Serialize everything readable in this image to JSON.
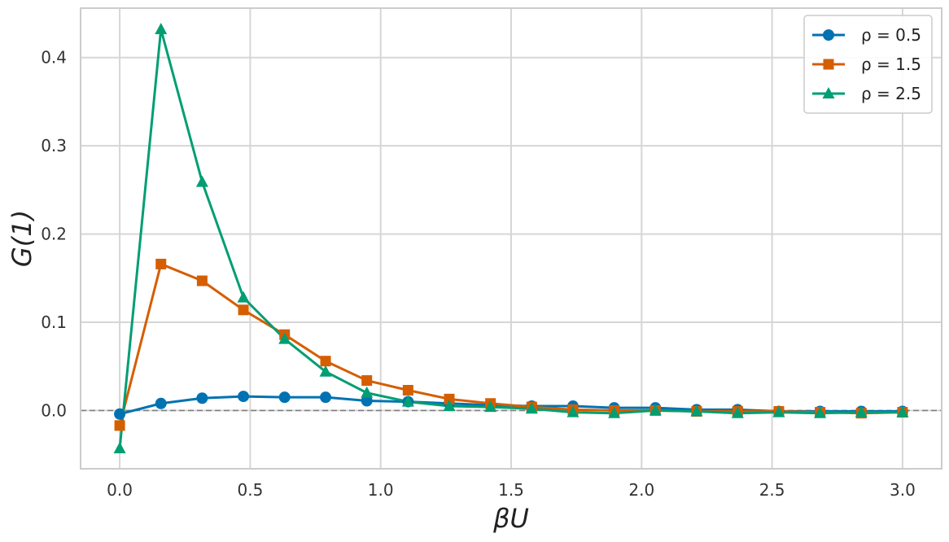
{
  "chart_data": {
    "type": "line",
    "xlabel": "βU",
    "ylabel": "G(1)",
    "xlim": [
      -0.15,
      3.15
    ],
    "ylim": [
      -0.066,
      0.456
    ],
    "xticks": [
      0.0,
      0.5,
      1.0,
      1.5,
      2.0,
      2.5,
      3.0
    ],
    "xtick_labels": [
      "0.0",
      "0.5",
      "1.0",
      "1.5",
      "2.0",
      "2.5",
      "3.0"
    ],
    "yticks": [
      0.0,
      0.1,
      0.2,
      0.3,
      0.4
    ],
    "ytick_labels": [
      "0.0",
      "0.1",
      "0.2",
      "0.3",
      "0.4"
    ],
    "grid": true,
    "reference_line": {
      "y": 0.0,
      "style": "dashed",
      "color": "#808080"
    },
    "legend_position": "top-right",
    "x": [
      0.0,
      0.158,
      0.316,
      0.474,
      0.632,
      0.789,
      0.947,
      1.105,
      1.263,
      1.421,
      1.579,
      1.737,
      1.895,
      2.053,
      2.211,
      2.368,
      2.526,
      2.684,
      2.842,
      3.0
    ],
    "series": [
      {
        "name": "ρ = 0.5",
        "color": "#0072b2",
        "marker": "circle",
        "values": [
          -0.004,
          0.008,
          0.014,
          0.016,
          0.015,
          0.015,
          0.011,
          0.01,
          0.008,
          0.006,
          0.005,
          0.005,
          0.003,
          0.003,
          0.001,
          0.001,
          -0.001,
          -0.001,
          -0.001,
          -0.001
        ]
      },
      {
        "name": "ρ = 1.5",
        "color": "#d55e00",
        "marker": "square",
        "values": [
          -0.017,
          0.166,
          0.147,
          0.114,
          0.086,
          0.056,
          0.034,
          0.023,
          0.013,
          0.008,
          0.004,
          0.001,
          0.0,
          0.0,
          -0.001,
          -0.001,
          -0.001,
          -0.002,
          -0.003,
          -0.002
        ]
      },
      {
        "name": "ρ = 2.5",
        "color": "#009e73",
        "marker": "triangle",
        "values": [
          -0.043,
          0.432,
          0.259,
          0.128,
          0.081,
          0.044,
          0.02,
          0.01,
          0.005,
          0.004,
          0.002,
          -0.002,
          -0.003,
          0.0,
          -0.001,
          -0.003,
          -0.002,
          -0.003,
          -0.002,
          -0.002
        ]
      }
    ]
  }
}
